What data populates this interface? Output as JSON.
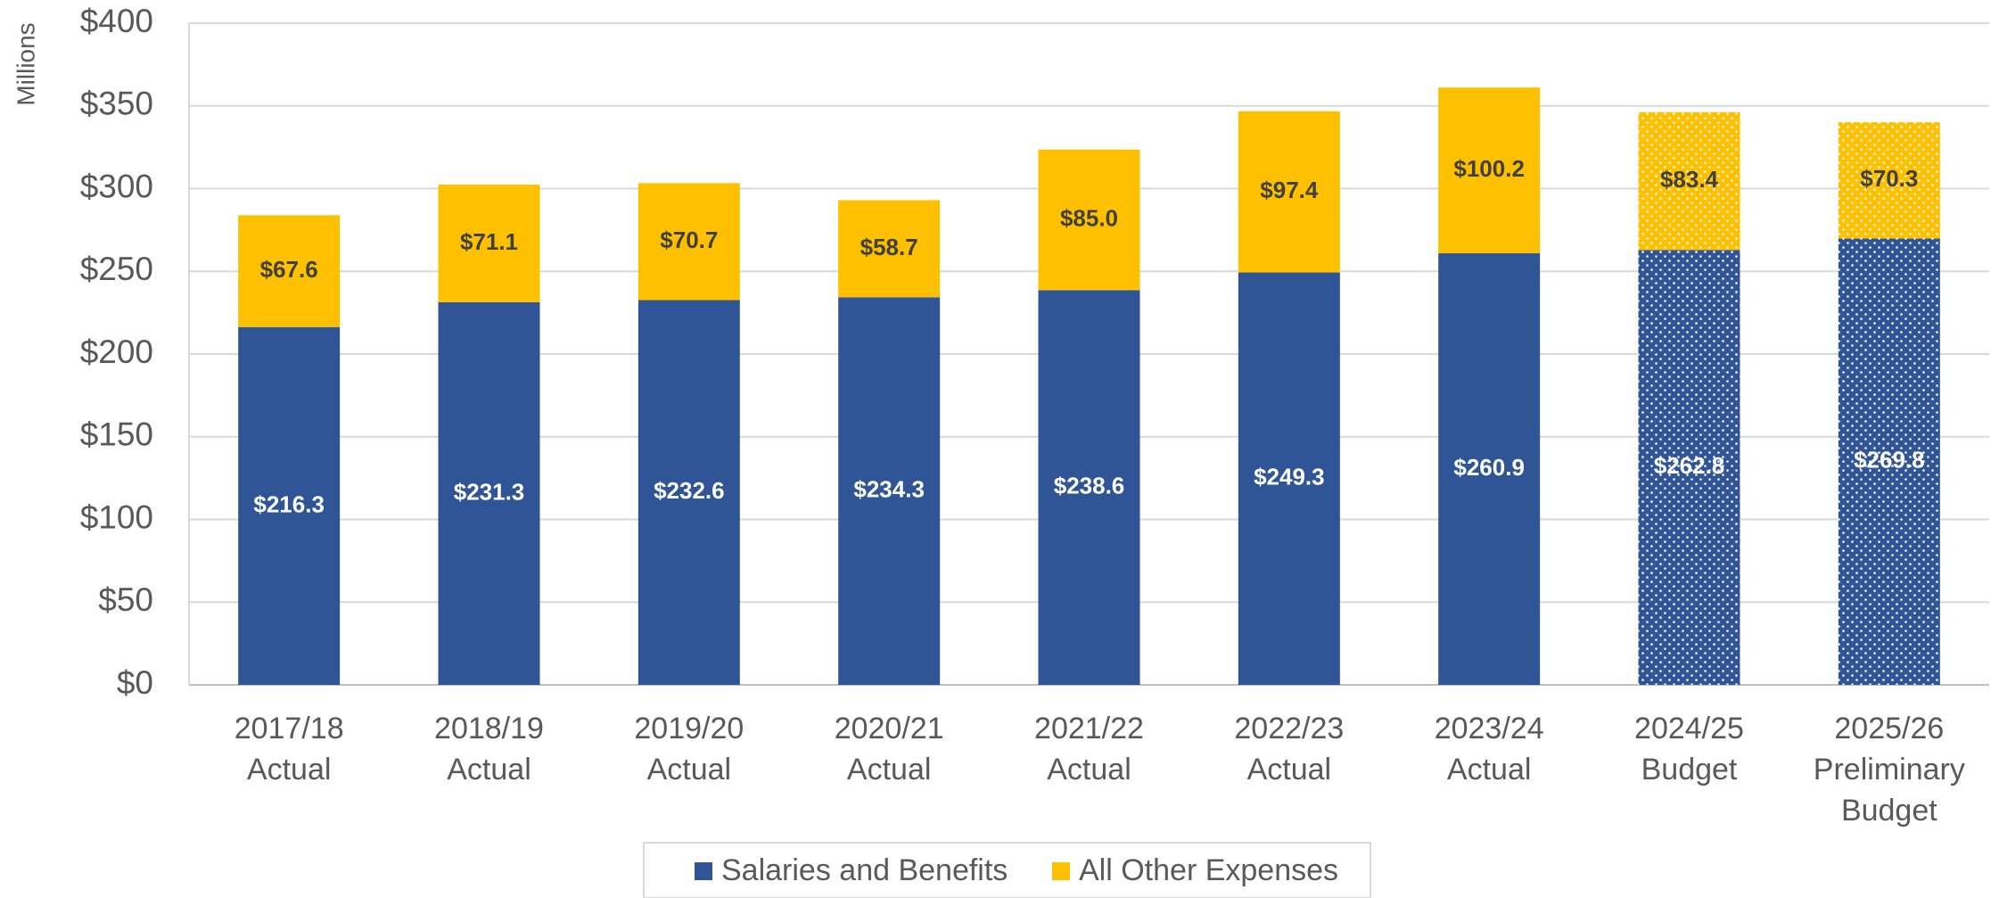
{
  "chart_data": {
    "type": "stacked_bar",
    "y_axis_label": "Millions",
    "categories": [
      [
        "2017/18",
        "Actual"
      ],
      [
        "2018/19",
        "Actual"
      ],
      [
        "2019/20",
        "Actual"
      ],
      [
        "2020/21",
        "Actual"
      ],
      [
        "2021/22",
        "Actual"
      ],
      [
        "2022/23",
        "Actual"
      ],
      [
        "2023/24",
        "Actual"
      ],
      [
        "2024/25",
        "Budget"
      ],
      [
        "2025/26",
        "Preliminary",
        "Budget"
      ]
    ],
    "dotted": [
      false,
      false,
      false,
      false,
      false,
      false,
      false,
      true,
      true
    ],
    "series": [
      {
        "name": "Salaries and Benefits",
        "color": "#2f5597",
        "label_color": "#ffffff",
        "values": [
          216.3,
          231.3,
          232.6,
          234.3,
          238.6,
          249.3,
          260.9,
          262.8,
          269.8
        ],
        "value_labels": [
          "$216.3",
          "$231.3",
          "$232.6",
          "$234.3",
          "$238.6",
          "$249.3",
          "$260.9",
          "$262.8",
          "$269.8"
        ]
      },
      {
        "name": "All Other Expenses",
        "color": "#ffc000",
        "label_color": "#404040",
        "values": [
          67.6,
          71.1,
          70.7,
          58.7,
          85.0,
          97.4,
          100.2,
          83.4,
          70.3
        ],
        "value_labels": [
          "$67.6",
          "$71.1",
          "$70.7",
          "$58.7",
          "$85.0",
          "$97.4",
          "$100.2",
          "$83.4",
          "$70.3"
        ]
      }
    ],
    "ylim": [
      0,
      400
    ],
    "yticks": [
      {
        "value": 0,
        "label": "$0"
      },
      {
        "value": 50,
        "label": "$50"
      },
      {
        "value": 100,
        "label": "$100"
      },
      {
        "value": 150,
        "label": "$150"
      },
      {
        "value": 200,
        "label": "$200"
      },
      {
        "value": 250,
        "label": "$250"
      },
      {
        "value": 300,
        "label": "$300"
      },
      {
        "value": 350,
        "label": "$350"
      },
      {
        "value": 400,
        "label": "$400"
      }
    ],
    "grid": true,
    "legend": "bottom"
  }
}
